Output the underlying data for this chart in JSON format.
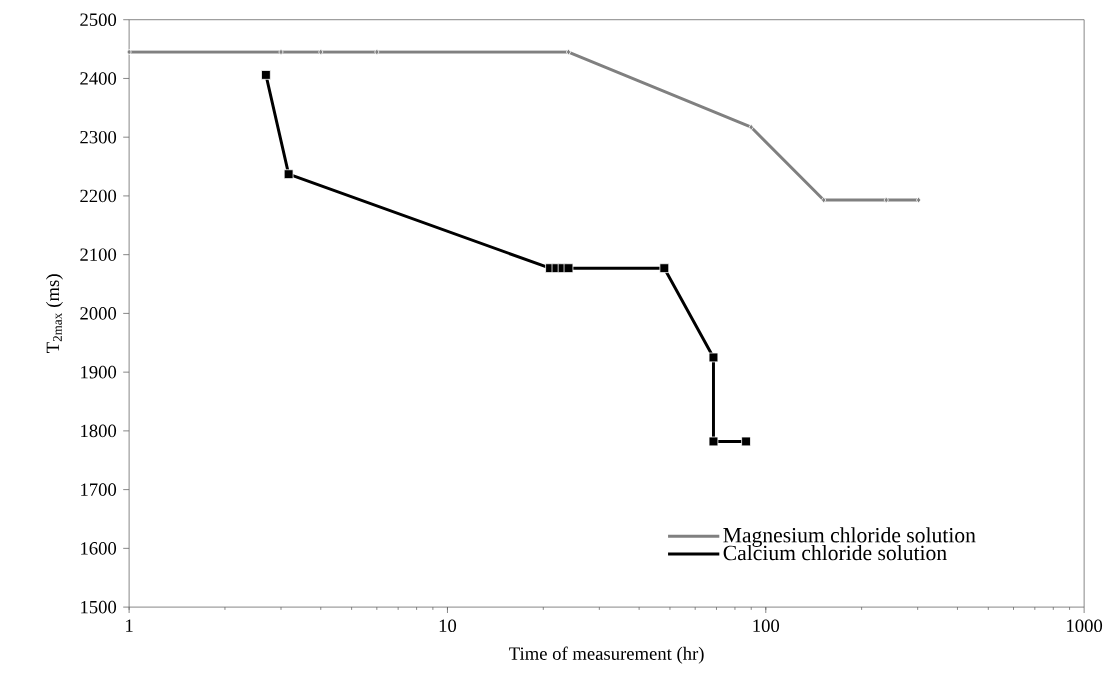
{
  "chart_data": {
    "type": "line",
    "xlabel": "Time of measurement (hr)",
    "ylabel": "T$_{2max}$ (ms)",
    "log": "x",
    "xlim": [
      1,
      1000
    ],
    "xticks": [
      1,
      10,
      100,
      1000
    ],
    "ylim": [
      1500,
      2500
    ],
    "yticks": [
      1500,
      1600,
      1700,
      1800,
      1900,
      2000,
      2100,
      2200,
      2300,
      2400,
      2500
    ],
    "grid": false,
    "legend": "bottom right",
    "series": [
      {
        "name": "Magnesium chloride solution",
        "color": "#808080",
        "marker": "diamond",
        "x": [
          1,
          3,
          4,
          6,
          24,
          90,
          152,
          239,
          302
        ],
        "values": [
          2445,
          2445,
          2445,
          2445,
          2445,
          2317,
          2193,
          2193,
          2193
        ]
      },
      {
        "name": "Calcium chloride solution",
        "color": "#000000",
        "marker": "square",
        "x": [
          2.69,
          3.17,
          21,
          22,
          23,
          24,
          48,
          68.5,
          68.5,
          86.7
        ],
        "values": [
          2406,
          2237,
          2077,
          2077,
          2077,
          2077,
          2077,
          1925,
          1782,
          1782
        ]
      }
    ]
  }
}
